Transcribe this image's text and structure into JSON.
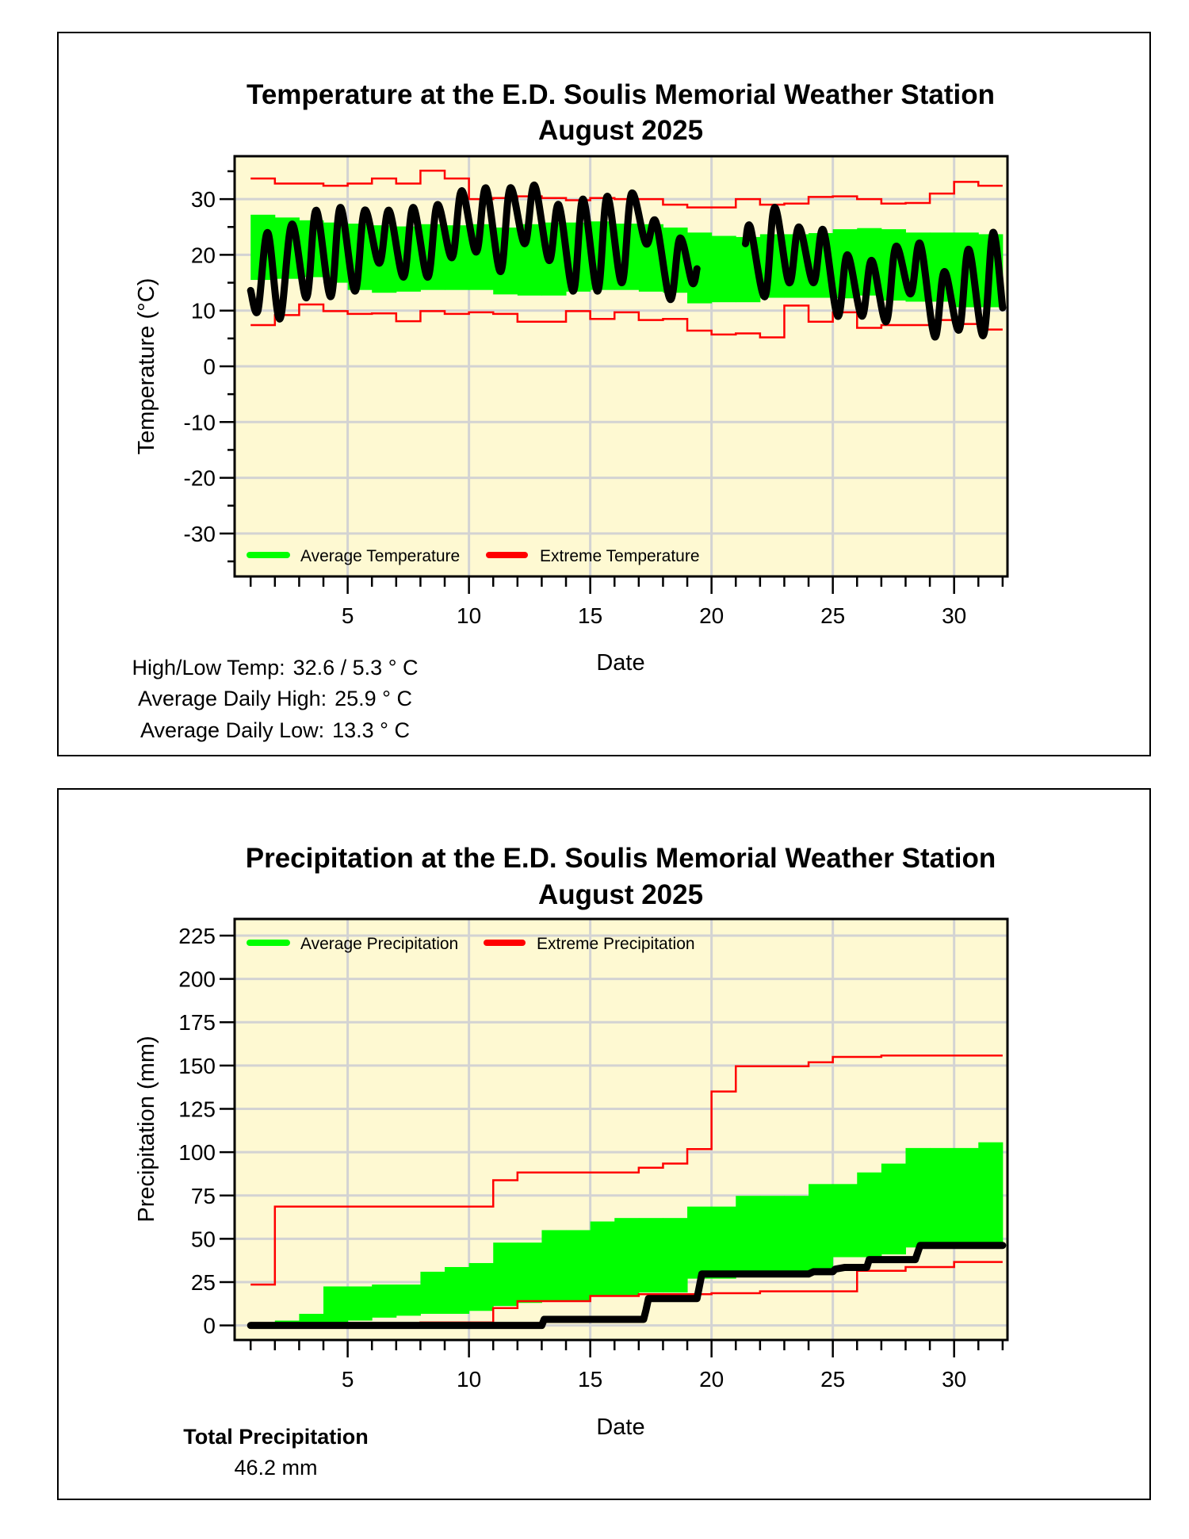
{
  "colors": {
    "plot_bg": "#FEF9D2",
    "average": "#00FF00",
    "extreme": "#FF0000",
    "actual": "#000000",
    "grid": "#D3D3D3"
  },
  "chart_data": [
    {
      "type": "line",
      "title": "Temperature at the E.D. Soulis Memorial Weather Station",
      "subtitle": "August 2025",
      "xlabel": "Date",
      "ylabel": "Temperature (°C)",
      "xlim": [
        0.34,
        32.2
      ],
      "ylim": [
        -37.7,
        37.7
      ],
      "xticks": [
        5,
        10,
        15,
        20,
        25,
        30
      ],
      "xtick_labels": [
        "5",
        "10",
        "15",
        "20",
        "25",
        "30"
      ],
      "yticks": [
        30,
        20,
        10,
        0,
        -10,
        -20,
        -30
      ],
      "ytick_labels": [
        "30",
        "20",
        "10",
        "0",
        "-10",
        "-20",
        "-30"
      ],
      "grid": true,
      "legend": {
        "placement": "bottom-left",
        "entries": [
          "Average Temperature",
          "Extreme Temperature"
        ]
      },
      "days": [
        1,
        2,
        3,
        4,
        5,
        6,
        7,
        8,
        9,
        10,
        11,
        12,
        13,
        14,
        15,
        16,
        17,
        18,
        19,
        20,
        21,
        22,
        23,
        24,
        25,
        26,
        27,
        28,
        29,
        30,
        31
      ],
      "average_high": [
        27.2,
        26.7,
        26.2,
        25.8,
        25.6,
        25.3,
        25.1,
        25.5,
        25.3,
        25.5,
        24.9,
        25.5,
        25.8,
        25.8,
        26,
        25.6,
        25.5,
        24.9,
        24,
        23.4,
        23.2,
        23.7,
        23.7,
        23.9,
        24.6,
        24.8,
        24.6,
        24,
        24,
        24,
        23.7
      ],
      "average_low": [
        15.5,
        15.7,
        16,
        15,
        13.7,
        13.2,
        13.4,
        13.7,
        13.7,
        13.7,
        12.9,
        12.7,
        12.7,
        13.4,
        13.7,
        13.7,
        13.4,
        13.2,
        11.3,
        11.5,
        11.5,
        12.3,
        12.3,
        12.3,
        12.2,
        12.7,
        11.8,
        11.6,
        11.6,
        10.6,
        10.6
      ],
      "extreme_high": [
        33.7,
        32.8,
        32.8,
        32.4,
        32.8,
        33.7,
        32.8,
        35.1,
        33.7,
        30,
        30.2,
        30.5,
        30.2,
        29.8,
        30.2,
        30,
        30,
        29,
        28.5,
        28.5,
        30,
        29,
        29.2,
        30.4,
        30.5,
        30,
        29.2,
        29.3,
        31,
        33.1,
        32.4
      ],
      "extreme_low": [
        7.4,
        9.2,
        11.1,
        9.9,
        9.4,
        9.5,
        8.1,
        9.9,
        9.4,
        9.7,
        9.4,
        8,
        8,
        9.9,
        8.5,
        9.7,
        8.3,
        8.5,
        6.4,
        5.7,
        5.9,
        5.2,
        10.9,
        8,
        9.7,
        6.9,
        7.4,
        7.4,
        8.3,
        7.6,
        6.6
      ],
      "actual_segments": [
        [
          [
            1,
            13.6
          ],
          [
            1.3,
            10
          ],
          [
            1.7,
            24
          ],
          [
            2.2,
            8.5
          ],
          [
            2.7,
            25.5
          ],
          [
            3.3,
            12.3
          ],
          [
            3.7,
            28
          ],
          [
            4.3,
            12.5
          ],
          [
            4.7,
            28.5
          ],
          [
            5.3,
            13.5
          ],
          [
            5.7,
            28
          ],
          [
            6.3,
            18.5
          ],
          [
            6.7,
            28
          ],
          [
            7.3,
            16
          ],
          [
            7.7,
            28.5
          ],
          [
            8.3,
            16
          ],
          [
            8.7,
            29
          ],
          [
            9.3,
            19.5
          ],
          [
            9.7,
            31.5
          ],
          [
            10.3,
            20.5
          ],
          [
            10.7,
            32
          ],
          [
            11.3,
            17
          ],
          [
            11.7,
            32
          ],
          [
            12.3,
            22
          ],
          [
            12.7,
            32.5
          ],
          [
            13.3,
            19
          ],
          [
            13.7,
            29
          ],
          [
            14.3,
            13.5
          ],
          [
            14.7,
            30
          ],
          [
            15.3,
            13.5
          ],
          [
            15.7,
            30.5
          ],
          [
            16.3,
            15
          ],
          [
            16.7,
            31
          ],
          [
            17.3,
            22
          ],
          [
            17.7,
            26
          ],
          [
            18.3,
            12
          ],
          [
            18.7,
            23
          ],
          [
            19.2,
            15
          ],
          [
            19.4,
            17.5
          ]
        ],
        [
          [
            21.4,
            22
          ],
          [
            21.6,
            25
          ],
          [
            22.2,
            12.5
          ],
          [
            22.6,
            28.5
          ],
          [
            23.2,
            15
          ],
          [
            23.6,
            25
          ],
          [
            24.2,
            15
          ],
          [
            24.6,
            24.5
          ],
          [
            25.2,
            9
          ],
          [
            25.6,
            20
          ],
          [
            26.2,
            9
          ],
          [
            26.6,
            19
          ],
          [
            27.2,
            8
          ],
          [
            27.6,
            21.5
          ],
          [
            28.2,
            13
          ],
          [
            28.6,
            22
          ],
          [
            29.2,
            5.3
          ],
          [
            29.6,
            17
          ],
          [
            30.2,
            6.5
          ],
          [
            30.6,
            21
          ],
          [
            31.2,
            5.5
          ],
          [
            31.6,
            24
          ],
          [
            32,
            10.5
          ]
        ]
      ],
      "stats": [
        {
          "label": "High/Low Temp:",
          "value": "32.6 / 5.3 ° C"
        },
        {
          "label": "Average Daily High:",
          "value": "25.9 ° C"
        },
        {
          "label": "Average Daily Low:",
          "value": "13.3 ° C"
        }
      ]
    },
    {
      "type": "line",
      "title": "Precipitation at the E.D. Soulis Memorial Weather Station",
      "subtitle": "August 2025",
      "xlabel": "Date",
      "ylabel": "Precipitation (mm)",
      "xlim": [
        0.34,
        32.2
      ],
      "ylim": [
        -8.4,
        234.6
      ],
      "xticks": [
        5,
        10,
        15,
        20,
        25,
        30
      ],
      "xtick_labels": [
        "5",
        "10",
        "15",
        "20",
        "25",
        "30"
      ],
      "yticks": [
        225,
        200,
        175,
        150,
        125,
        100,
        75,
        50,
        25,
        0
      ],
      "ytick_labels": [
        "225",
        "200",
        "175",
        "150",
        "125",
        "100",
        "75",
        "50",
        "25",
        "0"
      ],
      "grid": true,
      "legend": {
        "placement": "top-left",
        "entries": [
          "Average Precipitation",
          "Extreme Precipitation"
        ]
      },
      "days": [
        1,
        2,
        3,
        4,
        5,
        6,
        7,
        8,
        9,
        10,
        11,
        12,
        13,
        14,
        15,
        16,
        17,
        18,
        19,
        20,
        21,
        22,
        23,
        24,
        25,
        26,
        27,
        28,
        29,
        30,
        31
      ],
      "average_high": [
        0,
        2.8,
        6.7,
        22.5,
        22.5,
        23.6,
        23.6,
        31,
        33.7,
        36,
        47.8,
        47.8,
        55,
        55,
        60,
        62,
        62,
        62,
        68.6,
        68.6,
        74.8,
        74.8,
        74.8,
        81.6,
        81.6,
        88.3,
        93.4,
        102.4,
        102.4,
        102.4,
        105.7
      ],
      "average_low": [
        0,
        0.5,
        1,
        1.2,
        2.8,
        4.5,
        5.6,
        6.7,
        6.7,
        8.4,
        11.2,
        13,
        14,
        14,
        17,
        17,
        19,
        19,
        27,
        27,
        28,
        28.7,
        28.7,
        30.4,
        39.4,
        39.4,
        41,
        45,
        46,
        46,
        46
      ],
      "extreme_high": [
        23.6,
        68.6,
        68.6,
        68.6,
        68.6,
        68.6,
        68.6,
        68.6,
        68.6,
        68.6,
        83.8,
        88.3,
        88.3,
        88.3,
        88.3,
        88.3,
        91,
        93.4,
        101.8,
        135,
        149.6,
        149.6,
        149.6,
        151.9,
        155,
        155,
        155.8,
        155.8,
        155.8,
        155.8,
        155.8
      ],
      "extreme_low": [
        0,
        0,
        0,
        0,
        0,
        0,
        0.5,
        1.7,
        1.7,
        1.7,
        10,
        14,
        14,
        14,
        17,
        17,
        18,
        18,
        18,
        18.6,
        18.6,
        19.7,
        19.7,
        19.7,
        19.7,
        31.5,
        31.5,
        33.7,
        33.7,
        36.6,
        36.6
      ],
      "actual_segments": [
        [
          [
            1,
            0
          ],
          [
            13,
            0
          ],
          [
            13.1,
            3.5
          ],
          [
            17.2,
            3.5
          ],
          [
            17.3,
            9
          ],
          [
            17.4,
            15.5
          ],
          [
            19.4,
            15.5
          ],
          [
            19.6,
            29.7
          ],
          [
            24,
            29.7
          ],
          [
            24.2,
            31
          ],
          [
            25,
            31
          ],
          [
            25.1,
            32.5
          ],
          [
            25.5,
            33.5
          ],
          [
            26.4,
            33.5
          ],
          [
            26.5,
            38
          ],
          [
            28.4,
            38
          ],
          [
            28.6,
            46.2
          ],
          [
            32,
            46.2
          ]
        ]
      ],
      "stats": [
        {
          "label": "Total Precipitation",
          "value": "46.2 mm"
        }
      ]
    }
  ]
}
